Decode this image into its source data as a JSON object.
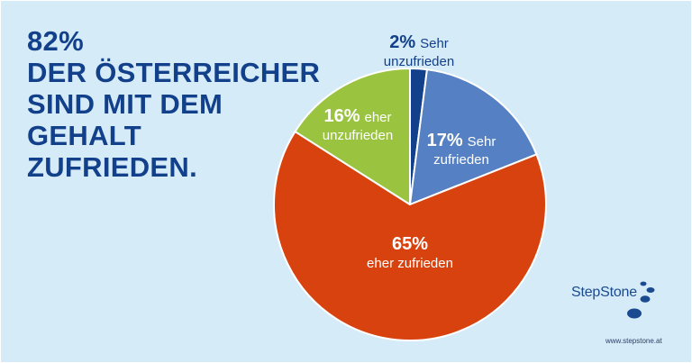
{
  "headline": {
    "line1": "82%",
    "line2": "DER ÖSTERREICHER",
    "line3": "SIND MIT DEM",
    "line4": "GEHALT",
    "line5": "ZUFRIEDEN."
  },
  "brand": {
    "name": "StepStone",
    "url": "www.stepstone.at",
    "icon": "stepstone-logo-icon"
  },
  "colors": {
    "background": "#d6ebf8",
    "headline": "#12408a",
    "very_dissatisfied": "#12408a",
    "very_satisfied": "#5580c3",
    "rather_satisfied": "#d8420f",
    "rather_dissatisfied": "#9ac43f"
  },
  "chart_data": {
    "type": "pie",
    "start": "12 o'clock",
    "direction": "clockwise",
    "slices": [
      {
        "value": 2,
        "pct_label": "2%",
        "label_line1": "Sehr",
        "label_line2": "unzufrieden",
        "color": "#12408a",
        "label_color": "#12408a"
      },
      {
        "value": 17,
        "pct_label": "17%",
        "label_line1": "Sehr",
        "label_line2": "zufrieden",
        "color": "#5580c3",
        "label_color": "#ffffff"
      },
      {
        "value": 65,
        "pct_label": "65%",
        "label_line1": "",
        "label_line2": "eher zufrieden",
        "color": "#d8420f",
        "label_color": "#ffffff"
      },
      {
        "value": 16,
        "pct_label": "16%",
        "label_line1": "eher",
        "label_line2": "unzufrieden",
        "color": "#9ac43f",
        "label_color": "#ffffff"
      }
    ]
  }
}
